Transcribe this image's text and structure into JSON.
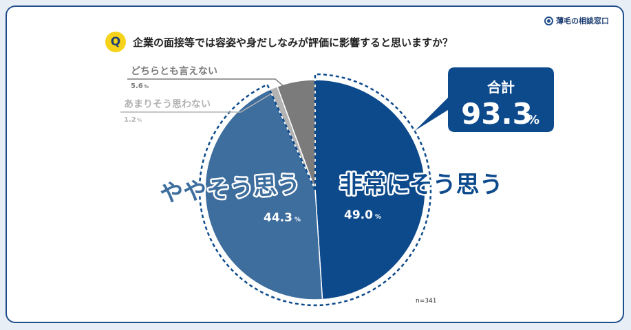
{
  "brand": {
    "name": "薄毛の相談窓口",
    "icon": "brand-circle-icon"
  },
  "question": {
    "badge": "Q",
    "text": "企業の面接等では容姿や身だしなみが評価に影響すると思いますか？"
  },
  "sample_size": "n=341",
  "callout": {
    "label": "合計",
    "value": "93.3",
    "unit": "%"
  },
  "chart_data": {
    "type": "pie",
    "title": "企業の面接等では容姿や身だしなみが評価に影響すると思いますか？",
    "slices": [
      {
        "label": "非常にそう思う",
        "value": 49.0,
        "value_text": "49.0",
        "color": "#0d4a8c"
      },
      {
        "label": "ややそう思う",
        "value": 44.3,
        "value_text": "44.3",
        "color": "#3e6e9e"
      },
      {
        "label": "あまりそう思わない",
        "value": 1.2,
        "value_text": "1.2",
        "color": "#b3b3b3"
      },
      {
        "label": "どちらとも言えない",
        "value": 5.6,
        "value_text": "5.6",
        "color": "#7b7b7b"
      }
    ],
    "unit": "%",
    "total_highlight": {
      "label": "合計",
      "value": 93.3
    }
  }
}
